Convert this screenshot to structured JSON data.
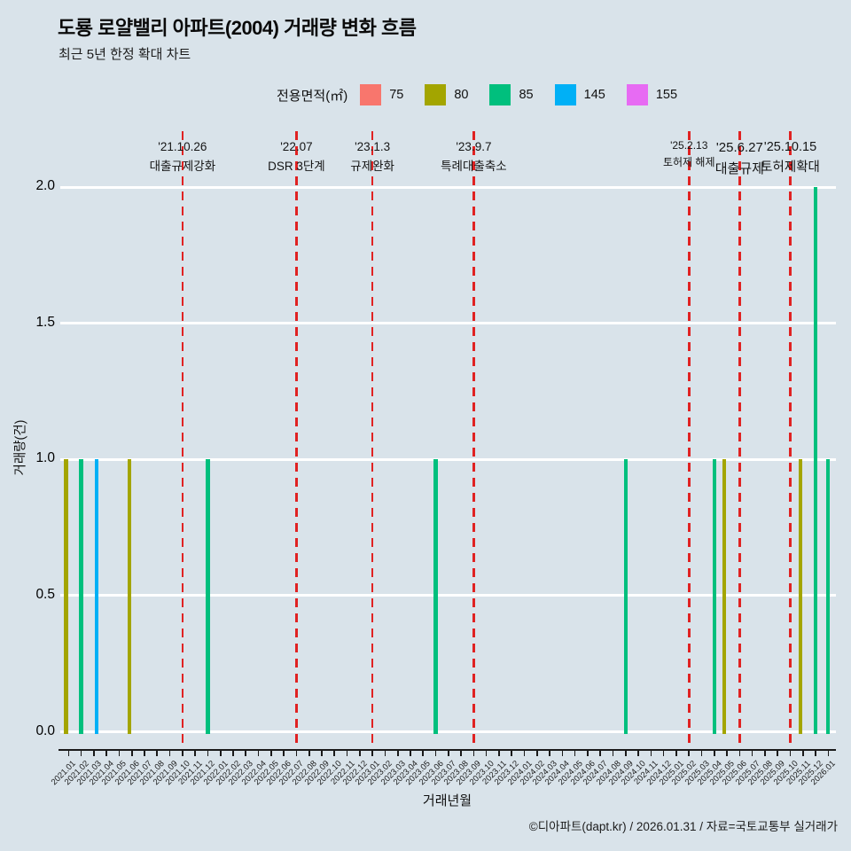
{
  "header": {
    "title": "도룡 로얄밸리 아파트(2004) 거래량 변화 흐름",
    "subtitle": "최근 5년 한정 확대 차트"
  },
  "legend": {
    "title": "전용면적(㎡)",
    "items": [
      {
        "label": "75",
        "color": "#F8766D"
      },
      {
        "label": "80",
        "color": "#A3A500"
      },
      {
        "label": "85",
        "color": "#00BF7D"
      },
      {
        "label": "145",
        "color": "#00B0F6"
      },
      {
        "label": "155",
        "color": "#E76BF3"
      }
    ]
  },
  "chart_data": {
    "type": "bar",
    "title": "도룡 로얄밸리 아파트(2004) 거래량 변화 흐름",
    "subtitle": "최근 5년 한정 확대 차트",
    "xlabel": "거래년월",
    "ylabel": "거래량(건)",
    "ylim": [
      0,
      2
    ],
    "yticks": [
      "0.0",
      "0.5",
      "1.0",
      "1.5",
      "2.0"
    ],
    "grid": "horizontal white gridlines on light blue panel",
    "legend_position": "top",
    "categories": [
      "2021.01",
      "2021.02",
      "2021.03",
      "2021.04",
      "2021.05",
      "2021.06",
      "2021.07",
      "2021.08",
      "2021.09",
      "2021.10",
      "2021.11",
      "2021.12",
      "2022.01",
      "2022.02",
      "2022.03",
      "2022.04",
      "2022.05",
      "2022.06",
      "2022.07",
      "2022.08",
      "2022.09",
      "2022.10",
      "2022.11",
      "2022.12",
      "2023.01",
      "2023.02",
      "2023.03",
      "2023.04",
      "2023.05",
      "2023.06",
      "2023.07",
      "2023.08",
      "2023.09",
      "2023.10",
      "2023.11",
      "2023.12",
      "2024.01",
      "2024.02",
      "2024.03",
      "2024.04",
      "2024.05",
      "2024.06",
      "2024.07",
      "2024.08",
      "2024.09",
      "2024.10",
      "2024.11",
      "2024.12",
      "2025.01",
      "2025.02",
      "2025.03",
      "2025.04",
      "2025.05",
      "2025.06",
      "2025.07",
      "2025.08",
      "2025.09",
      "2025.10",
      "2025.11",
      "2025.12",
      "2026.01"
    ],
    "series": [
      {
        "name": "75",
        "color": "#F8766D",
        "points": []
      },
      {
        "name": "80",
        "color": "#A3A500",
        "points": [
          {
            "x": "2021.01",
            "y": 1
          },
          {
            "x": "2021.06",
            "y": 1
          },
          {
            "x": "2025.05",
            "y": 1
          },
          {
            "x": "2025.11",
            "y": 1
          }
        ]
      },
      {
        "name": "85",
        "color": "#00BF7D",
        "points": [
          {
            "x": "2021.02",
            "y": 1
          },
          {
            "x": "2021.12",
            "y": 1
          },
          {
            "x": "2023.06",
            "y": 1
          },
          {
            "x": "2024.09",
            "y": 1
          },
          {
            "x": "2025.04",
            "y": 1
          },
          {
            "x": "2025.12",
            "y": 2
          },
          {
            "x": "2026.01",
            "y": 1
          }
        ]
      },
      {
        "name": "145",
        "color": "#00B0F6",
        "points": [
          {
            "x": "2021.03",
            "y": 1
          }
        ]
      },
      {
        "name": "155",
        "color": "#E76BF3",
        "points": []
      }
    ],
    "annotations": [
      {
        "x": "2021.10",
        "date": "'21.10.26",
        "label": "대출규제강화",
        "size": 13.5
      },
      {
        "x": "2022.07",
        "date": "'22.07",
        "label": "DSR 3단계",
        "size": 13.5
      },
      {
        "x": "2023.01",
        "date": "'23.1.3",
        "label": "규제완화",
        "size": 13.5
      },
      {
        "x": "2023.09",
        "date": "'23.9.7",
        "label": "특례대출축소",
        "size": 13.5
      },
      {
        "x": "2025.02",
        "date": "'25.2.13",
        "label": "토허제 해제",
        "size": 12
      },
      {
        "x": "2025.06",
        "date": "'25.6.27",
        "label": "대출규제",
        "size": 15
      },
      {
        "x": "2025.10",
        "date": "'25.10.15",
        "label": "토허제확대",
        "size": 14.5
      }
    ],
    "event_line_color": "#e02222",
    "panel_background": "#d9e3ea",
    "gridline_color": "#ffffff"
  },
  "footer": {
    "credit": "©디아파트(dapt.kr) / 2026.01.31 / 자료=국토교통부 실거래가"
  }
}
